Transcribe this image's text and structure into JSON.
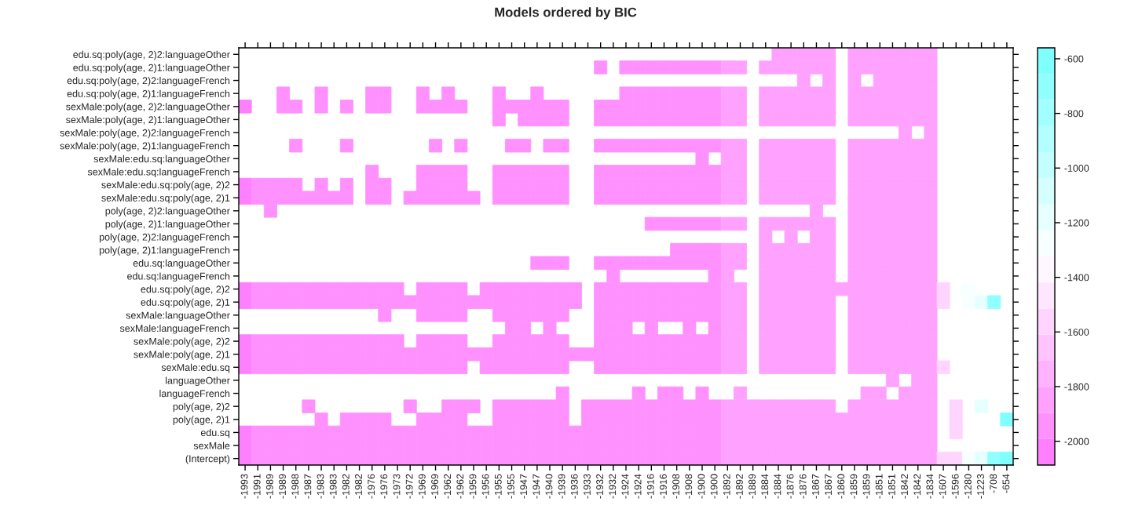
{
  "chart_data": {
    "type": "heatmap",
    "title": "Models ordered by BIC",
    "categories": [
      "-1993",
      "-1991",
      "-1989",
      "-1989",
      "-1988",
      "-1987",
      "-1983",
      "-1983",
      "-1982",
      "-1982",
      "-1976",
      "-1976",
      "-1973",
      "-1972",
      "-1969",
      "-1969",
      "-1962",
      "-1962",
      "-1959",
      "-1956",
      "-1955",
      "-1955",
      "-1947",
      "-1947",
      "-1940",
      "-1939",
      "-1936",
      "-1933",
      "-1932",
      "-1932",
      "-1924",
      "-1924",
      "-1916",
      "-1916",
      "-1908",
      "-1908",
      "-1900",
      "-1900",
      "-1892",
      "-1892",
      "-1889",
      "-1884",
      "-1884",
      "-1876",
      "-1876",
      "-1867",
      "-1867",
      "-1860",
      "-1859",
      "-1859",
      "-1851",
      "-1851",
      "-1842",
      "-1842",
      "-1834",
      "-1607",
      "-1596",
      "-1280",
      "-1223",
      "-708",
      "-654"
    ],
    "y_categories": [
      "edu.sq:poly(age, 2)2:languageOther",
      "edu.sq:poly(age, 2)1:languageOther",
      "edu.sq:poly(age, 2)2:languageFrench",
      "edu.sq:poly(age, 2)1:languageFrench",
      "sexMale:poly(age, 2)2:languageOther",
      "sexMale:poly(age, 2)1:languageOther",
      "sexMale:poly(age, 2)2:languageFrench",
      "sexMale:poly(age, 2)1:languageFrench",
      "sexMale:edu.sq:languageOther",
      "sexMale:edu.sq:languageFrench",
      "sexMale:edu.sq:poly(age, 2)2",
      "sexMale:edu.sq:poly(age, 2)1",
      "poly(age, 2)2:languageOther",
      "poly(age, 2)1:languageOther",
      "poly(age, 2)2:languageFrench",
      "poly(age, 2)1:languageFrench",
      "edu.sq:languageOther",
      "edu.sq:languageFrench",
      "edu.sq:poly(age, 2)2",
      "edu.sq:poly(age, 2)1",
      "sexMale:languageOther",
      "sexMale:languageFrench",
      "sexMale:poly(age, 2)2",
      "sexMale:poly(age, 2)1",
      "sexMale:edu.sq",
      "languageOther",
      "languageFrench",
      "poly(age, 2)2",
      "poly(age, 2)1",
      "edu.sq",
      "sexMale",
      "(Intercept)"
    ],
    "cells": [
      [
        null,
        null,
        null,
        null,
        null,
        null,
        null,
        null,
        null,
        null,
        null,
        null,
        null,
        null,
        null,
        null,
        null,
        null,
        null,
        null,
        null,
        null,
        null,
        null,
        null,
        null,
        null,
        null,
        null,
        null,
        null,
        null,
        null,
        null,
        null,
        null,
        null,
        null,
        null,
        null,
        null,
        null,
        -1884,
        -1876,
        -1876,
        -1867,
        -1867,
        null,
        -1859,
        -1859,
        -1851,
        -1851,
        -1842,
        -1842,
        -1834,
        null,
        null,
        null,
        null,
        null,
        null
      ],
      [
        null,
        null,
        null,
        null,
        null,
        null,
        null,
        null,
        null,
        null,
        null,
        null,
        null,
        null,
        null,
        null,
        null,
        null,
        null,
        null,
        null,
        null,
        null,
        null,
        null,
        null,
        null,
        null,
        -1932,
        null,
        -1924,
        -1924,
        -1916,
        -1916,
        -1908,
        -1908,
        -1900,
        -1900,
        -1892,
        -1892,
        null,
        -1884,
        -1884,
        -1876,
        -1876,
        -1867,
        -1867,
        null,
        -1859,
        -1859,
        -1851,
        -1851,
        -1842,
        -1842,
        -1834,
        null,
        null,
        null,
        null,
        null,
        null
      ],
      [
        null,
        null,
        null,
        null,
        null,
        null,
        null,
        null,
        null,
        null,
        null,
        null,
        null,
        null,
        null,
        null,
        null,
        null,
        null,
        null,
        null,
        null,
        null,
        null,
        null,
        null,
        null,
        null,
        null,
        null,
        null,
        null,
        null,
        null,
        null,
        null,
        null,
        null,
        null,
        null,
        null,
        null,
        null,
        null,
        -1876,
        null,
        -1867,
        null,
        -1859,
        null,
        -1851,
        -1851,
        -1842,
        -1842,
        -1834,
        null,
        null,
        null,
        null,
        null,
        null
      ],
      [
        null,
        null,
        null,
        -1989,
        null,
        null,
        -1983,
        null,
        null,
        null,
        -1976,
        -1976,
        null,
        null,
        -1969,
        null,
        -1962,
        null,
        null,
        null,
        -1955,
        null,
        null,
        -1947,
        null,
        null,
        null,
        null,
        null,
        null,
        -1924,
        -1924,
        -1916,
        -1916,
        -1908,
        -1908,
        -1900,
        -1900,
        -1892,
        -1892,
        null,
        -1884,
        -1884,
        -1876,
        -1876,
        -1867,
        -1867,
        null,
        -1859,
        -1859,
        -1851,
        -1851,
        -1842,
        -1842,
        -1834,
        null,
        null,
        null,
        null,
        null,
        null
      ],
      [
        -1993,
        null,
        null,
        -1989,
        -1988,
        null,
        -1983,
        null,
        -1982,
        null,
        -1976,
        -1976,
        null,
        null,
        -1969,
        -1969,
        -1962,
        -1962,
        null,
        null,
        -1955,
        -1955,
        -1947,
        -1947,
        -1940,
        -1939,
        null,
        null,
        -1932,
        -1932,
        -1924,
        -1924,
        -1916,
        -1916,
        -1908,
        -1908,
        -1900,
        -1900,
        -1892,
        -1892,
        null,
        -1884,
        -1884,
        -1876,
        -1876,
        -1867,
        -1867,
        null,
        -1859,
        -1859,
        -1851,
        -1851,
        -1842,
        -1842,
        -1834,
        null,
        null,
        null,
        null,
        null,
        null
      ],
      [
        null,
        null,
        null,
        null,
        null,
        null,
        null,
        null,
        null,
        null,
        null,
        null,
        null,
        null,
        null,
        null,
        null,
        null,
        null,
        null,
        -1955,
        null,
        -1947,
        -1947,
        -1940,
        -1939,
        null,
        null,
        -1932,
        -1932,
        -1924,
        -1924,
        -1916,
        -1916,
        -1908,
        -1908,
        -1900,
        -1900,
        -1892,
        -1892,
        null,
        -1884,
        -1884,
        -1876,
        -1876,
        -1867,
        -1867,
        null,
        -1859,
        -1859,
        -1851,
        -1851,
        -1842,
        -1842,
        -1834,
        null,
        null,
        null,
        null,
        null,
        null
      ],
      [
        null,
        null,
        null,
        null,
        null,
        null,
        null,
        null,
        null,
        null,
        null,
        null,
        null,
        null,
        null,
        null,
        null,
        null,
        null,
        null,
        null,
        null,
        null,
        null,
        null,
        null,
        null,
        null,
        null,
        null,
        null,
        null,
        null,
        null,
        null,
        null,
        null,
        null,
        null,
        null,
        null,
        null,
        null,
        null,
        null,
        null,
        null,
        null,
        null,
        null,
        null,
        null,
        -1842,
        null,
        -1834,
        null,
        null,
        null,
        null,
        null,
        null
      ],
      [
        null,
        null,
        null,
        null,
        -1988,
        null,
        null,
        null,
        -1982,
        null,
        null,
        null,
        null,
        null,
        null,
        -1969,
        null,
        -1962,
        null,
        null,
        null,
        -1955,
        -1947,
        null,
        -1940,
        -1939,
        null,
        null,
        -1932,
        -1932,
        -1924,
        -1924,
        -1916,
        -1916,
        -1908,
        -1908,
        -1900,
        -1900,
        -1892,
        -1892,
        null,
        -1884,
        -1884,
        -1876,
        -1876,
        -1867,
        -1867,
        null,
        -1859,
        -1859,
        -1851,
        -1851,
        -1842,
        -1842,
        -1834,
        null,
        null,
        null,
        null,
        null,
        null
      ],
      [
        null,
        null,
        null,
        null,
        null,
        null,
        null,
        null,
        null,
        null,
        null,
        null,
        null,
        null,
        null,
        null,
        null,
        null,
        null,
        null,
        null,
        null,
        null,
        null,
        null,
        null,
        null,
        null,
        null,
        null,
        null,
        null,
        null,
        null,
        null,
        null,
        -1900,
        null,
        -1892,
        -1892,
        null,
        -1884,
        -1884,
        -1876,
        -1876,
        -1867,
        -1867,
        null,
        -1859,
        -1859,
        -1851,
        -1851,
        -1842,
        -1842,
        -1834,
        null,
        null,
        null,
        null,
        null,
        null
      ],
      [
        null,
        null,
        null,
        null,
        null,
        null,
        null,
        null,
        null,
        null,
        -1976,
        null,
        null,
        null,
        -1969,
        -1969,
        -1962,
        -1962,
        null,
        null,
        -1955,
        -1955,
        -1947,
        -1947,
        -1940,
        -1939,
        null,
        null,
        -1932,
        -1932,
        -1924,
        -1924,
        -1916,
        -1916,
        -1908,
        -1908,
        -1900,
        -1900,
        -1892,
        -1892,
        null,
        -1884,
        -1884,
        -1876,
        -1876,
        -1867,
        -1867,
        null,
        -1859,
        -1859,
        -1851,
        -1851,
        -1842,
        -1842,
        -1834,
        null,
        null,
        null,
        null,
        null,
        null
      ],
      [
        -1993,
        -1991,
        -1989,
        -1989,
        -1988,
        null,
        -1983,
        null,
        -1982,
        null,
        -1976,
        -1976,
        null,
        null,
        -1969,
        -1969,
        -1962,
        -1962,
        null,
        null,
        -1955,
        -1955,
        -1947,
        -1947,
        -1940,
        -1939,
        null,
        null,
        -1932,
        -1932,
        -1924,
        -1924,
        -1916,
        -1916,
        -1908,
        -1908,
        -1900,
        -1900,
        -1892,
        -1892,
        null,
        -1884,
        -1884,
        -1876,
        -1876,
        -1867,
        -1867,
        null,
        -1859,
        -1859,
        -1851,
        -1851,
        -1842,
        -1842,
        -1834,
        null,
        null,
        null,
        null,
        null,
        null
      ],
      [
        -1993,
        -1991,
        -1989,
        -1989,
        -1988,
        -1987,
        -1983,
        -1983,
        -1982,
        null,
        -1976,
        -1976,
        null,
        -1972,
        -1969,
        -1969,
        -1962,
        -1962,
        -1959,
        null,
        -1955,
        -1955,
        -1947,
        -1947,
        -1940,
        -1939,
        null,
        null,
        -1932,
        -1932,
        -1924,
        -1924,
        -1916,
        -1916,
        -1908,
        -1908,
        -1900,
        -1900,
        -1892,
        -1892,
        null,
        -1884,
        -1884,
        -1876,
        -1876,
        -1867,
        -1867,
        null,
        -1859,
        -1859,
        -1851,
        -1851,
        -1842,
        -1842,
        -1834,
        null,
        null,
        null,
        null,
        null,
        null
      ],
      [
        null,
        null,
        -1989,
        null,
        null,
        null,
        null,
        null,
        null,
        null,
        null,
        null,
        null,
        null,
        null,
        null,
        null,
        null,
        null,
        null,
        null,
        null,
        null,
        null,
        null,
        null,
        null,
        null,
        null,
        null,
        null,
        null,
        null,
        null,
        null,
        null,
        null,
        null,
        null,
        null,
        null,
        null,
        null,
        null,
        null,
        -1867,
        null,
        null,
        -1859,
        -1859,
        -1851,
        -1851,
        -1842,
        -1842,
        -1834,
        null,
        null,
        null,
        null,
        null,
        null
      ],
      [
        null,
        null,
        null,
        null,
        null,
        null,
        null,
        null,
        null,
        null,
        null,
        null,
        null,
        null,
        null,
        null,
        null,
        null,
        null,
        null,
        null,
        null,
        null,
        null,
        null,
        null,
        null,
        null,
        null,
        null,
        null,
        null,
        -1916,
        -1916,
        -1908,
        -1908,
        -1900,
        -1900,
        -1892,
        -1892,
        null,
        -1884,
        -1884,
        -1876,
        -1876,
        -1867,
        -1867,
        null,
        -1859,
        -1859,
        -1851,
        -1851,
        -1842,
        -1842,
        -1834,
        null,
        null,
        null,
        null,
        null,
        null
      ],
      [
        null,
        null,
        null,
        null,
        null,
        null,
        null,
        null,
        null,
        null,
        null,
        null,
        null,
        null,
        null,
        null,
        null,
        null,
        null,
        null,
        null,
        null,
        null,
        null,
        null,
        null,
        null,
        null,
        null,
        null,
        null,
        null,
        null,
        null,
        null,
        null,
        null,
        null,
        null,
        null,
        null,
        -1884,
        null,
        -1876,
        null,
        -1867,
        -1867,
        null,
        -1859,
        -1859,
        -1851,
        -1851,
        -1842,
        -1842,
        -1834,
        null,
        null,
        null,
        null,
        null,
        null
      ],
      [
        null,
        null,
        null,
        null,
        null,
        null,
        null,
        null,
        null,
        null,
        null,
        null,
        null,
        null,
        null,
        null,
        null,
        null,
        null,
        null,
        null,
        null,
        null,
        null,
        null,
        null,
        null,
        null,
        null,
        null,
        null,
        null,
        null,
        null,
        -1908,
        -1908,
        -1900,
        -1900,
        -1892,
        -1892,
        null,
        -1884,
        -1884,
        -1876,
        -1876,
        -1867,
        -1867,
        null,
        -1859,
        -1859,
        -1851,
        -1851,
        -1842,
        -1842,
        -1834,
        null,
        null,
        null,
        null,
        null,
        null
      ],
      [
        null,
        null,
        null,
        null,
        null,
        null,
        null,
        null,
        null,
        null,
        null,
        null,
        null,
        null,
        null,
        null,
        null,
        null,
        null,
        null,
        null,
        null,
        null,
        -1947,
        -1940,
        -1939,
        null,
        null,
        -1932,
        -1932,
        -1924,
        -1924,
        -1916,
        -1916,
        -1908,
        -1908,
        -1900,
        -1900,
        -1892,
        -1892,
        null,
        -1884,
        -1884,
        -1876,
        -1876,
        -1867,
        -1867,
        null,
        -1859,
        -1859,
        -1851,
        -1851,
        -1842,
        -1842,
        -1834,
        null,
        null,
        null,
        null,
        null,
        null
      ],
      [
        null,
        null,
        null,
        null,
        null,
        null,
        null,
        null,
        null,
        null,
        null,
        null,
        null,
        null,
        null,
        null,
        null,
        null,
        null,
        null,
        null,
        null,
        null,
        null,
        null,
        null,
        null,
        null,
        null,
        -1932,
        null,
        null,
        null,
        null,
        null,
        null,
        null,
        -1900,
        -1892,
        null,
        null,
        -1884,
        -1884,
        -1876,
        -1876,
        -1867,
        -1867,
        null,
        -1859,
        -1859,
        -1851,
        -1851,
        -1842,
        -1842,
        -1834,
        null,
        null,
        null,
        null,
        null,
        null
      ],
      [
        -1993,
        -1991,
        -1989,
        -1989,
        -1988,
        -1987,
        -1983,
        -1983,
        -1982,
        -1982,
        -1976,
        -1976,
        -1973,
        null,
        -1969,
        -1969,
        -1962,
        -1962,
        null,
        -1956,
        -1955,
        -1955,
        -1947,
        -1947,
        -1940,
        -1939,
        -1936,
        null,
        -1932,
        -1932,
        -1924,
        -1924,
        -1916,
        -1916,
        -1908,
        -1908,
        -1900,
        -1900,
        -1892,
        -1892,
        null,
        -1884,
        -1884,
        -1876,
        -1876,
        -1867,
        -1867,
        -1860,
        -1859,
        -1859,
        -1851,
        -1851,
        -1842,
        -1842,
        -1834,
        -1607,
        null,
        -1280,
        null,
        null,
        null
      ],
      [
        -1993,
        -1991,
        -1989,
        -1989,
        -1988,
        -1987,
        -1983,
        -1983,
        -1982,
        -1982,
        -1976,
        -1976,
        -1973,
        -1972,
        -1969,
        -1969,
        -1962,
        -1962,
        -1959,
        -1956,
        -1955,
        -1955,
        -1947,
        -1947,
        -1940,
        -1939,
        -1936,
        null,
        -1932,
        -1932,
        -1924,
        -1924,
        -1916,
        -1916,
        -1908,
        -1908,
        -1900,
        -1900,
        -1892,
        -1892,
        null,
        -1884,
        -1884,
        -1876,
        -1876,
        -1867,
        -1867,
        null,
        -1859,
        -1859,
        -1851,
        -1851,
        -1842,
        -1842,
        -1834,
        -1607,
        null,
        -1280,
        -1223,
        -708,
        null
      ],
      [
        null,
        null,
        null,
        null,
        null,
        null,
        null,
        null,
        null,
        null,
        null,
        -1976,
        null,
        null,
        -1969,
        -1969,
        -1962,
        -1962,
        null,
        null,
        -1955,
        -1955,
        -1947,
        -1947,
        -1940,
        -1939,
        null,
        null,
        -1932,
        -1932,
        -1924,
        -1924,
        -1916,
        -1916,
        -1908,
        -1908,
        -1900,
        -1900,
        -1892,
        -1892,
        null,
        -1884,
        -1884,
        -1876,
        -1876,
        -1867,
        -1867,
        null,
        -1859,
        -1859,
        -1851,
        -1851,
        -1842,
        -1842,
        -1834,
        null,
        null,
        null,
        null,
        null,
        null
      ],
      [
        null,
        null,
        null,
        null,
        null,
        null,
        null,
        null,
        null,
        null,
        null,
        null,
        null,
        null,
        null,
        null,
        null,
        null,
        null,
        null,
        null,
        -1955,
        -1947,
        null,
        -1940,
        null,
        null,
        null,
        -1932,
        -1932,
        -1924,
        null,
        -1916,
        null,
        null,
        -1908,
        null,
        -1900,
        -1892,
        -1892,
        null,
        -1884,
        -1884,
        -1876,
        -1876,
        -1867,
        -1867,
        null,
        -1859,
        -1859,
        -1851,
        -1851,
        -1842,
        -1842,
        -1834,
        null,
        null,
        null,
        null,
        null,
        null
      ],
      [
        -1993,
        -1991,
        -1989,
        -1989,
        -1988,
        -1987,
        -1983,
        -1983,
        -1982,
        -1982,
        -1976,
        -1976,
        -1973,
        null,
        -1969,
        -1969,
        -1962,
        -1962,
        null,
        null,
        -1955,
        -1955,
        -1947,
        -1947,
        -1940,
        -1939,
        null,
        null,
        -1932,
        -1932,
        -1924,
        -1924,
        -1916,
        -1916,
        -1908,
        -1908,
        -1900,
        -1900,
        -1892,
        -1892,
        null,
        -1884,
        -1884,
        -1876,
        -1876,
        -1867,
        -1867,
        null,
        -1859,
        -1859,
        -1851,
        -1851,
        -1842,
        -1842,
        -1834,
        null,
        null,
        null,
        null,
        null,
        null
      ],
      [
        -1993,
        -1991,
        -1989,
        -1989,
        -1988,
        -1987,
        -1983,
        -1983,
        -1982,
        -1982,
        -1976,
        -1976,
        -1973,
        -1972,
        -1969,
        -1969,
        -1962,
        -1962,
        -1959,
        -1956,
        -1955,
        -1955,
        -1947,
        -1947,
        -1940,
        -1939,
        -1936,
        -1933,
        -1932,
        -1932,
        -1924,
        -1924,
        -1916,
        -1916,
        -1908,
        -1908,
        -1900,
        -1900,
        -1892,
        -1892,
        null,
        -1884,
        -1884,
        -1876,
        -1876,
        -1867,
        -1867,
        null,
        -1859,
        -1859,
        -1851,
        -1851,
        -1842,
        -1842,
        -1834,
        null,
        null,
        null,
        null,
        null,
        null
      ],
      [
        -1993,
        -1991,
        -1989,
        -1989,
        -1988,
        -1987,
        -1983,
        -1983,
        -1982,
        -1982,
        -1976,
        -1976,
        -1973,
        -1972,
        -1969,
        -1969,
        -1962,
        -1962,
        null,
        -1956,
        -1955,
        -1955,
        -1947,
        -1947,
        -1940,
        -1939,
        null,
        null,
        -1932,
        -1932,
        -1924,
        -1924,
        -1916,
        -1916,
        -1908,
        -1908,
        -1900,
        -1900,
        -1892,
        -1892,
        null,
        -1884,
        -1884,
        -1876,
        -1876,
        -1867,
        -1867,
        null,
        -1859,
        -1859,
        -1851,
        -1851,
        -1842,
        -1842,
        -1834,
        -1607,
        null,
        null,
        null,
        null,
        null
      ],
      [
        null,
        null,
        null,
        null,
        null,
        null,
        null,
        null,
        null,
        null,
        null,
        null,
        null,
        null,
        null,
        null,
        null,
        null,
        null,
        null,
        null,
        null,
        null,
        null,
        null,
        null,
        null,
        null,
        null,
        null,
        null,
        null,
        null,
        null,
        null,
        null,
        null,
        null,
        null,
        null,
        null,
        null,
        null,
        null,
        null,
        null,
        null,
        null,
        null,
        null,
        null,
        -1851,
        null,
        -1842,
        -1834,
        null,
        null,
        null,
        null,
        null,
        null
      ],
      [
        null,
        null,
        null,
        null,
        null,
        null,
        null,
        null,
        null,
        null,
        null,
        null,
        null,
        null,
        null,
        null,
        null,
        null,
        null,
        null,
        null,
        null,
        null,
        null,
        null,
        -1939,
        null,
        null,
        null,
        null,
        null,
        -1924,
        null,
        -1916,
        -1908,
        null,
        -1900,
        null,
        null,
        -1892,
        null,
        null,
        null,
        null,
        null,
        null,
        null,
        null,
        null,
        -1859,
        -1851,
        null,
        -1842,
        -1842,
        -1834,
        null,
        null,
        null,
        null,
        null,
        null
      ],
      [
        null,
        null,
        null,
        null,
        null,
        -1987,
        null,
        null,
        null,
        null,
        null,
        null,
        null,
        -1972,
        null,
        null,
        -1962,
        -1962,
        -1959,
        null,
        -1955,
        -1955,
        -1947,
        -1947,
        -1940,
        -1939,
        null,
        -1933,
        -1932,
        -1932,
        -1924,
        -1924,
        -1916,
        -1916,
        -1908,
        -1908,
        -1900,
        -1900,
        -1892,
        -1892,
        -1889,
        -1884,
        -1884,
        -1876,
        -1876,
        -1867,
        -1867,
        null,
        -1859,
        -1859,
        -1851,
        -1851,
        -1842,
        -1842,
        -1834,
        null,
        -1596,
        null,
        -1223,
        null,
        null
      ],
      [
        null,
        null,
        null,
        null,
        null,
        null,
        -1983,
        null,
        -1982,
        -1982,
        -1976,
        -1976,
        null,
        null,
        -1969,
        -1969,
        -1962,
        -1962,
        null,
        null,
        -1955,
        -1955,
        -1947,
        -1947,
        -1940,
        -1939,
        null,
        -1933,
        -1932,
        -1932,
        -1924,
        -1924,
        -1916,
        -1916,
        -1908,
        -1908,
        -1900,
        -1900,
        -1892,
        -1892,
        -1889,
        -1884,
        -1884,
        -1876,
        -1876,
        -1867,
        -1867,
        -1860,
        -1859,
        -1859,
        -1851,
        -1851,
        -1842,
        -1842,
        -1834,
        null,
        -1596,
        null,
        null,
        null,
        -654
      ],
      [
        -1993,
        -1991,
        -1989,
        -1989,
        -1988,
        -1987,
        -1983,
        -1983,
        -1982,
        -1982,
        -1976,
        -1976,
        -1973,
        -1972,
        -1969,
        -1969,
        -1962,
        -1962,
        -1959,
        -1956,
        -1955,
        -1955,
        -1947,
        -1947,
        -1940,
        -1939,
        -1936,
        -1933,
        -1932,
        -1932,
        -1924,
        -1924,
        -1916,
        -1916,
        -1908,
        -1908,
        -1900,
        -1900,
        -1892,
        -1892,
        -1889,
        -1884,
        -1884,
        -1876,
        -1876,
        -1867,
        -1867,
        -1860,
        -1859,
        -1859,
        -1851,
        -1851,
        -1842,
        -1842,
        -1834,
        null,
        -1596,
        null,
        null,
        null,
        null
      ],
      [
        -1993,
        -1991,
        -1989,
        -1989,
        -1988,
        -1987,
        -1983,
        -1983,
        -1982,
        -1982,
        -1976,
        -1976,
        -1973,
        -1972,
        -1969,
        -1969,
        -1962,
        -1962,
        -1959,
        -1956,
        -1955,
        -1955,
        -1947,
        -1947,
        -1940,
        -1939,
        -1936,
        -1933,
        -1932,
        -1932,
        -1924,
        -1924,
        -1916,
        -1916,
        -1908,
        -1908,
        -1900,
        -1900,
        -1892,
        -1892,
        -1889,
        -1884,
        -1884,
        -1876,
        -1876,
        -1867,
        -1867,
        -1860,
        -1859,
        -1859,
        -1851,
        -1851,
        -1842,
        -1842,
        -1834,
        null,
        null,
        null,
        null,
        null,
        null
      ],
      [
        -1993,
        -1991,
        -1989,
        -1989,
        -1988,
        -1987,
        -1983,
        -1983,
        -1982,
        -1982,
        -1976,
        -1976,
        -1973,
        -1972,
        -1969,
        -1969,
        -1962,
        -1962,
        -1959,
        -1956,
        -1955,
        -1955,
        -1947,
        -1947,
        -1940,
        -1939,
        -1936,
        -1933,
        -1932,
        -1932,
        -1924,
        -1924,
        -1916,
        -1916,
        -1908,
        -1908,
        -1900,
        -1900,
        -1892,
        -1892,
        -1889,
        -1884,
        -1884,
        -1876,
        -1876,
        -1867,
        -1867,
        -1860,
        -1859,
        -1859,
        -1851,
        -1851,
        -1842,
        -1842,
        -1834,
        -1607,
        -1596,
        -1280,
        -1223,
        -708,
        -654
      ]
    ],
    "clim": [
      -2087,
      -560
    ],
    "cticks": [
      -2000,
      -1800,
      -1600,
      -1400,
      -1200,
      -1000,
      -800,
      -600
    ]
  }
}
